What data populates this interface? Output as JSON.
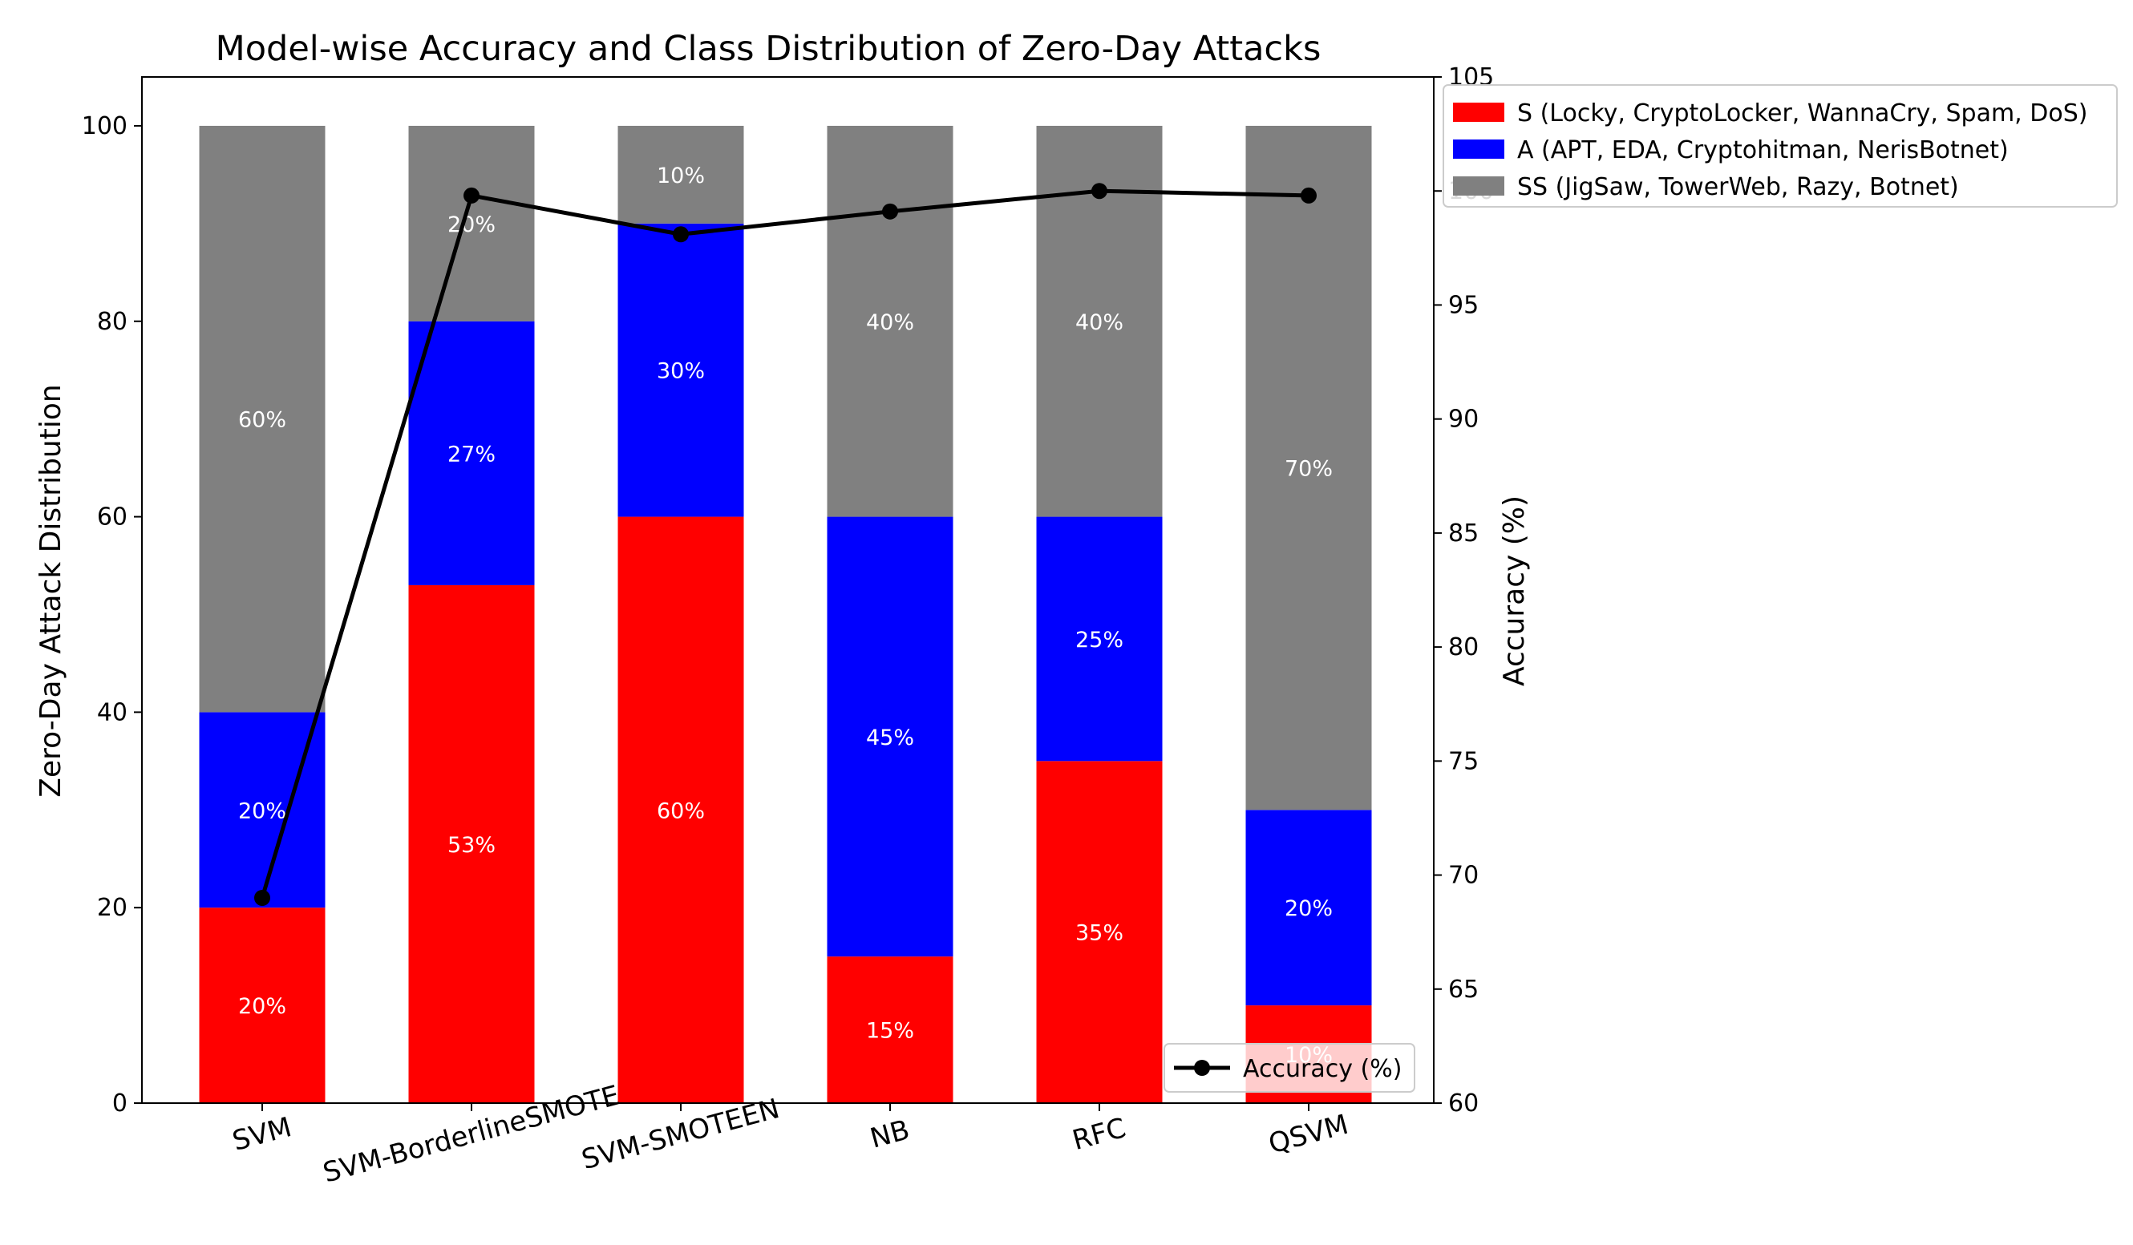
{
  "chart_data": {
    "type": "bar",
    "stacked": true,
    "title": "Model-wise Accuracy and Class Distribution of Zero-Day Attacks",
    "xlabel": "",
    "ylabel": "Zero-Day Attack Distribution",
    "ylabel_right": "Accuracy (%)",
    "ylim": [
      0,
      105
    ],
    "ylim_right": [
      60,
      105
    ],
    "yticks": [
      0,
      20,
      40,
      60,
      80,
      100
    ],
    "yticks_right": [
      60,
      65,
      70,
      75,
      80,
      85,
      90,
      95,
      100,
      105
    ],
    "categories": [
      "SVM",
      "SVM-BorderlineSMOTE",
      "SVM-SMOTEEN",
      "NB",
      "RFC",
      "QSVM"
    ],
    "series": [
      {
        "name": "S (Locky, CryptoLocker, WannaCry, Spam, DoS)",
        "color": "#ff0000",
        "values": [
          20,
          53,
          60,
          15,
          35,
          10
        ],
        "labels": [
          "20%",
          "53%",
          "60%",
          "15%",
          "35%",
          "10%"
        ]
      },
      {
        "name": "A (APT, EDA, Cryptohitman, NerisBotnet)",
        "color": "#0000ff",
        "values": [
          20,
          27,
          30,
          45,
          25,
          20
        ],
        "labels": [
          "20%",
          "27%",
          "30%",
          "45%",
          "25%",
          "20%"
        ]
      },
      {
        "name": "SS (JigSaw, TowerWeb, Razy, Botnet)",
        "color": "#808080",
        "values": [
          60,
          20,
          10,
          40,
          40,
          70
        ],
        "labels": [
          "60%",
          "20%",
          "10%",
          "40%",
          "40%",
          "70%"
        ]
      }
    ],
    "line_series": {
      "name": "Accuracy (%)",
      "color": "#000000",
      "axis": "right",
      "values": [
        69,
        99.8,
        98.1,
        99.1,
        100,
        99.8
      ]
    },
    "legend_position": "upper-right outside",
    "line_legend_position": "lower-right"
  }
}
